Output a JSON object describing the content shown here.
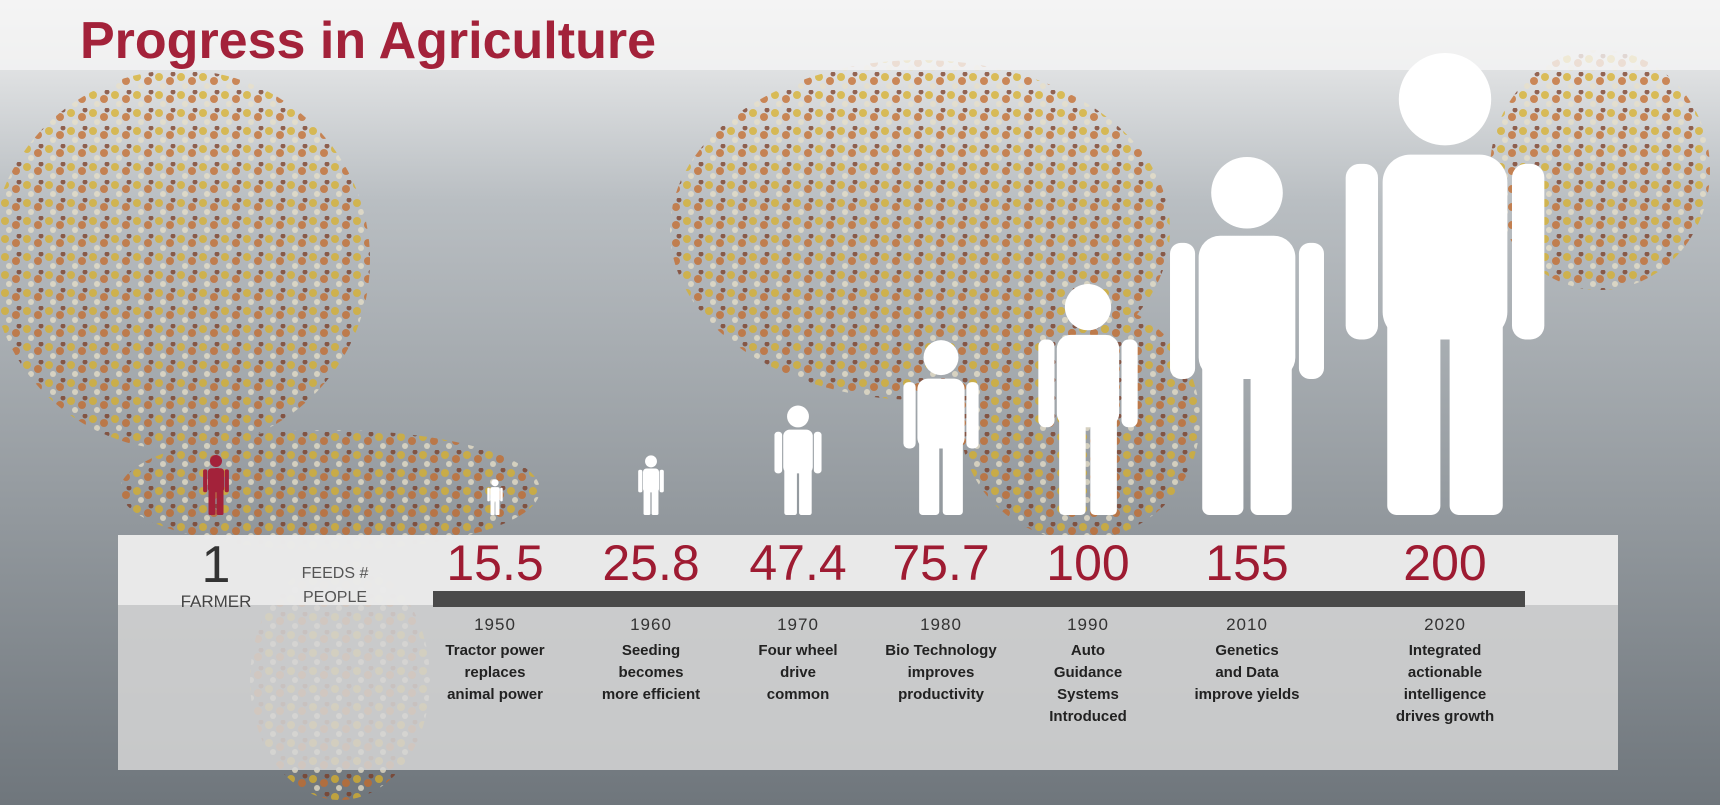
{
  "chart_data": {
    "type": "pictograph",
    "title": "Progress in Agriculture",
    "farmer_value": 1,
    "farmer_label": "FARMER",
    "feeds_label": [
      "FEEDS #",
      "PEOPLE"
    ],
    "categories": [
      "1950",
      "1960",
      "1970",
      "1980",
      "1990",
      "2010",
      "2020"
    ],
    "values": [
      15.5,
      25.8,
      47.4,
      75.7,
      100,
      155,
      200
    ],
    "descriptions": [
      [
        "Tractor power",
        "replaces",
        "animal power"
      ],
      [
        "Seeding",
        "becomes",
        "more efficient"
      ],
      [
        "Four wheel",
        "drive",
        "common"
      ],
      [
        "Bio Technology",
        "improves",
        "productivity"
      ],
      [
        "Auto",
        "Guidance",
        "Systems",
        "Introduced"
      ],
      [
        "Genetics",
        "and Data",
        "improve yields"
      ],
      [
        "Integrated",
        "actionable",
        "intelligence",
        "drives growth"
      ]
    ],
    "color": "#ffffff",
    "farmer_color": "#a3223a"
  }
}
